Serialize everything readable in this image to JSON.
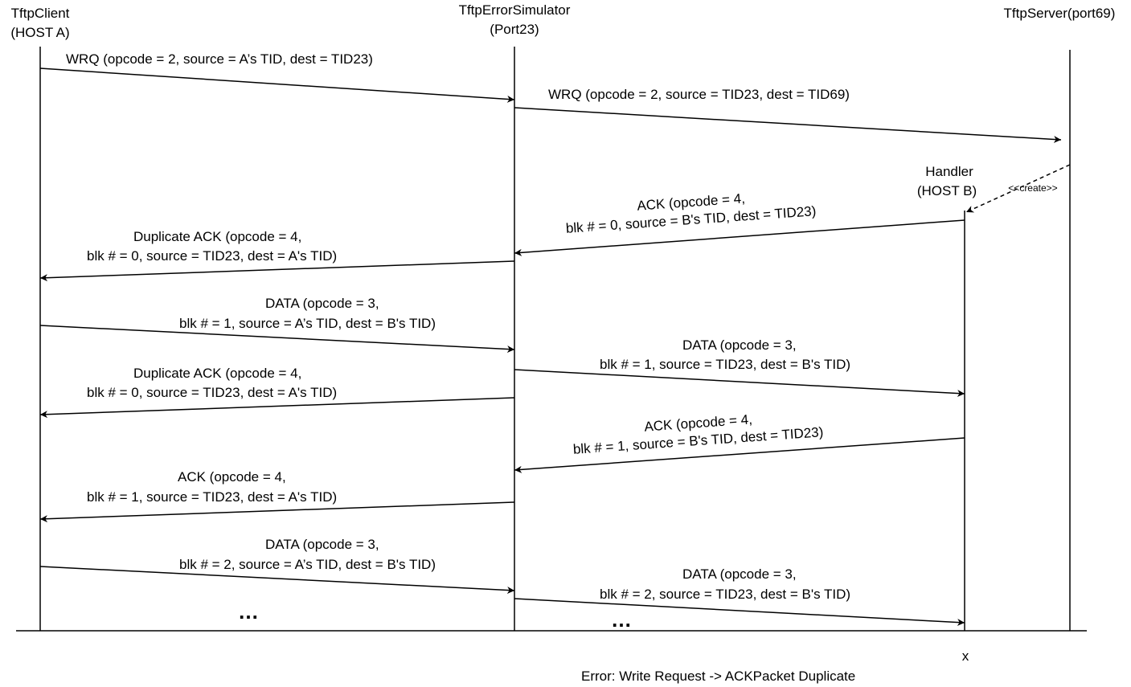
{
  "participants": {
    "client": {
      "name": "TftpClient",
      "host": "(HOST A)"
    },
    "simulator": {
      "name": "TftpErrorSimulator",
      "port": "(Port23)"
    },
    "server": {
      "name": "TftpServer(port69)"
    },
    "handler": {
      "name": "Handler",
      "host": "(HOST B)"
    }
  },
  "create_label": "<<create>>",
  "messages": {
    "m1": "WRQ  (opcode = 2, source = A’s TID, dest = TID23)",
    "m2": "WRQ  (opcode = 2, source = TID23, dest = TID69)",
    "m3a": "ACK (opcode = 4,",
    "m3b": "blk # = 0, source = B's TID, dest = TID23)",
    "m4a": "Duplicate   ACK (opcode = 4,",
    "m4b": "blk # = 0, source = TID23, dest = A's TID)",
    "m5a": "DATA  (opcode = 3,",
    "m5b": "blk # = 1, source = A’s TID, dest = B's TID)",
    "m6a": "DATA  (opcode = 3,",
    "m6b": "blk # = 1, source = TID23, dest = B's TID)",
    "m7a": "Duplicate   ACK (opcode = 4,",
    "m7b": "blk # = 0, source = TID23, dest = A's TID)",
    "m8a": "ACK (opcode = 4,",
    "m8b": "blk # = 1, source = B's TID, dest = TID23)",
    "m9a": "ACK (opcode = 4,",
    "m9b": "blk # = 1, source = TID23, dest = A's TID)",
    "m10a": "DATA  (opcode = 3,",
    "m10b": "blk # = 2, source = A’s TID, dest = B's TID)",
    "m11a": "DATA  (opcode = 3,",
    "m11b": "blk # = 2, source = TID23, dest = B's TID)"
  },
  "ellipsis_left": "…",
  "ellipsis_right": "…",
  "terminate_mark": "x",
  "error_caption": "Error: Write Request -> ACKPacket Duplicate"
}
